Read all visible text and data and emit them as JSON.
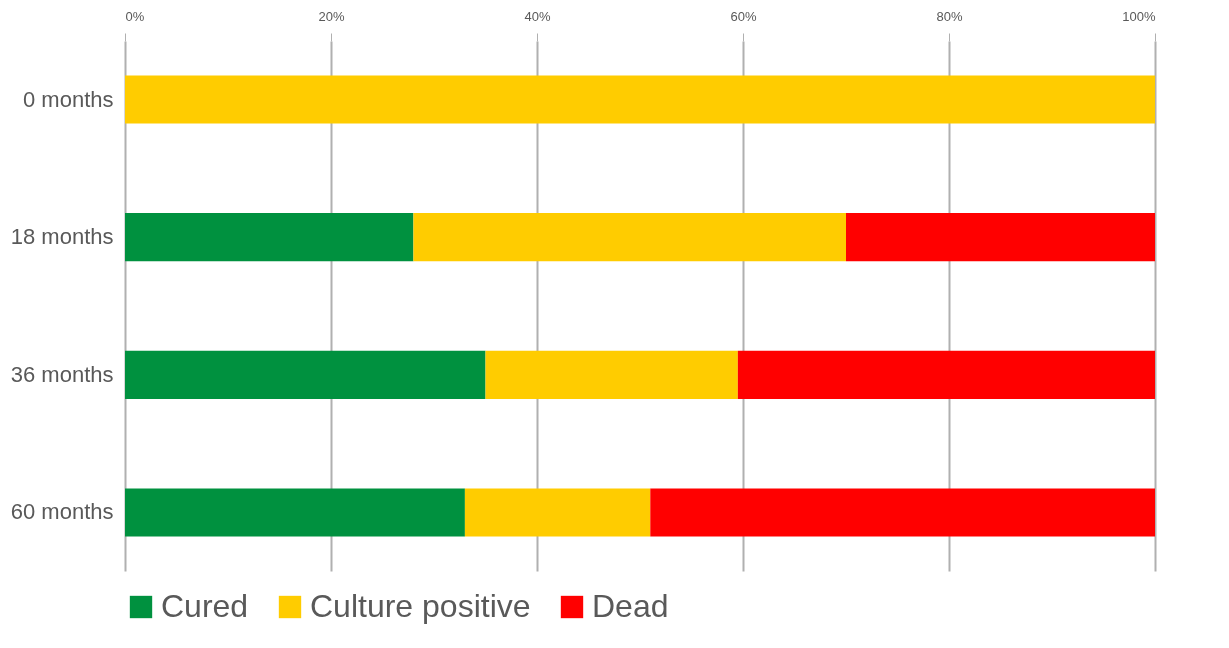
{
  "chart_data": {
    "type": "bar",
    "orientation": "horizontal",
    "stacked": true,
    "categories": [
      "0 months",
      "18 months",
      "36 months",
      "60 months"
    ],
    "series": [
      {
        "name": "Cured",
        "color": "#00913f",
        "values": [
          0,
          28,
          35,
          33
        ]
      },
      {
        "name": "Culture positive",
        "color": "#ffcc00",
        "values": [
          100,
          42,
          24.5,
          18
        ]
      },
      {
        "name": "Dead",
        "color": "#ff0000",
        "values": [
          0,
          30,
          40.5,
          49
        ]
      }
    ],
    "xlim": [
      0,
      100
    ],
    "xticks": [
      {
        "value": 0,
        "label": "0%"
      },
      {
        "value": 20,
        "label": "20%"
      },
      {
        "value": 40,
        "label": "40%"
      },
      {
        "value": 60,
        "label": "60%"
      },
      {
        "value": 80,
        "label": "80%"
      },
      {
        "value": 100,
        "label": "100%"
      }
    ],
    "grid": "x",
    "legend": "bottom"
  }
}
